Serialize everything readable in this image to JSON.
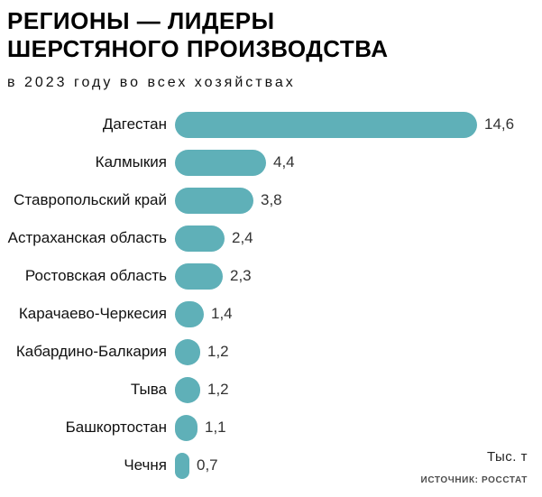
{
  "header": {
    "title_line1": "РЕГИОНЫ — ЛИДЕРЫ",
    "title_line2": "ШЕРСТЯНОГО ПРОИЗВОДСТВА",
    "subtitle": "в 2023 году во всех хозяйствах"
  },
  "footer": {
    "unit_label": "Тыс. т",
    "source_label": "ИСТОЧНИК: РОССТАТ"
  },
  "colors": {
    "bar": "#5FB0B8",
    "title_text": "#000000",
    "label_text": "#111111",
    "value_text": "#333333",
    "source_text": "#4d4d4d",
    "background": "#ffffff"
  },
  "chart_data": {
    "type": "bar",
    "orientation": "horizontal",
    "title": "РЕГИОНЫ — ЛИДЕРЫ ШЕРСТЯНОГО ПРОИЗВОДСТВА",
    "subtitle": "в 2023 году во всех хозяйствах",
    "unit": "Тыс. т",
    "source": "ИСТОЧНИК: РОССТАТ",
    "categories": [
      "Дагестан",
      "Калмыкия",
      "Ставропольский край",
      "Астраханская область",
      "Ростовская область",
      "Карачаево-Черкесия",
      "Кабардино-Балкария",
      "Тыва",
      "Башкортостан",
      "Чечня"
    ],
    "values": [
      14.6,
      4.4,
      3.8,
      2.4,
      2.3,
      1.4,
      1.2,
      1.2,
      1.1,
      0.7
    ],
    "value_labels": [
      "14,6",
      "4,4",
      "3,8",
      "2,4",
      "2,3",
      "1,4",
      "1,2",
      "1,2",
      "1,1",
      "0,7"
    ],
    "xlim": [
      0,
      14.6
    ],
    "grid": false,
    "legend": false,
    "data_labels_position": "right-of-bar"
  }
}
